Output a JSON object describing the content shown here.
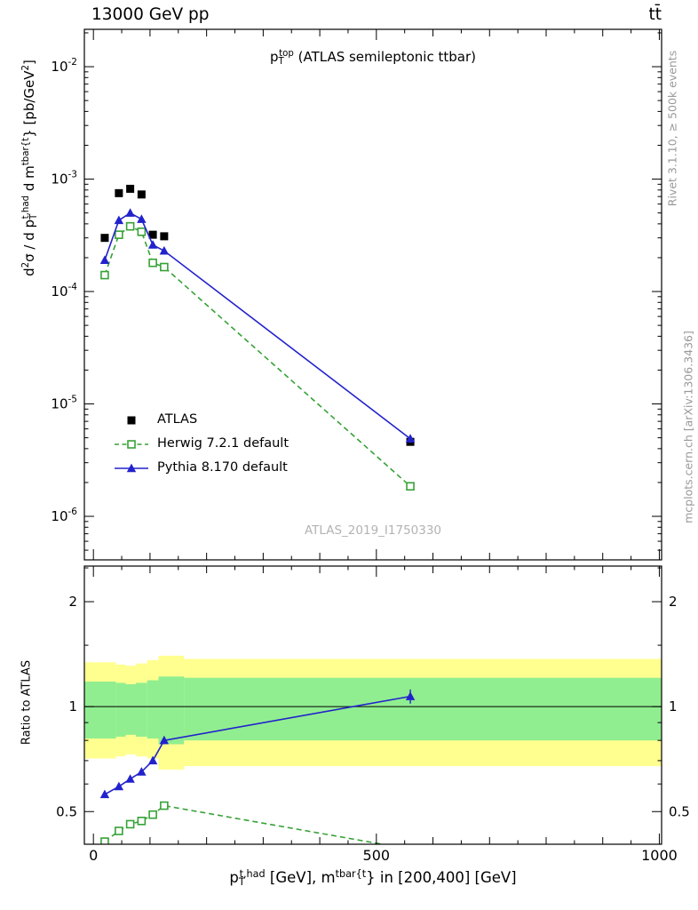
{
  "header": {
    "left": "13000 GeV pp",
    "right": "tt̄"
  },
  "watermark": "ATLAS_2019_I1750330",
  "side_notes": {
    "rivet": "Rivet 3.1.10, ≥ 500k events",
    "mcplots": "mcplots.cern.ch [arXiv:1306.3436]"
  },
  "axes": {
    "y_ratio_label": "Ratio to ATLAS"
  },
  "rich_text": {
    "panel_title": [
      {
        "t": "p",
        "s": "n"
      },
      {
        "t": "T",
        "s": "sub"
      },
      {
        "t": "top",
        "s": "sup"
      },
      {
        "t": " (ATLAS semileptonic ttbar)",
        "s": "n"
      }
    ],
    "y_main_label": [
      {
        "t": "d",
        "s": "n"
      },
      {
        "t": "2",
        "s": "sup"
      },
      {
        "t": "σ / d p",
        "s": "n"
      },
      {
        "t": "T",
        "s": "sub"
      },
      {
        "t": "t,had",
        "s": "sup"
      },
      {
        "t": " d m",
        "s": "n"
      },
      {
        "t": "tbar{t",
        "s": "sup"
      },
      {
        "t": "} [pb/GeV",
        "s": "n"
      },
      {
        "t": "2",
        "s": "sup"
      },
      {
        "t": "]",
        "s": "n"
      }
    ],
    "x_label": [
      {
        "t": "p",
        "s": "n"
      },
      {
        "t": "T",
        "s": "sub"
      },
      {
        "t": "t,had",
        "s": "sup"
      },
      {
        "t": " [GeV], m",
        "s": "n"
      },
      {
        "t": "tbar{t",
        "s": "sup"
      },
      {
        "t": "} in [200,400] [GeV]",
        "s": "n"
      }
    ]
  },
  "legend": [
    {
      "label": "ATLAS",
      "marker": "square-filled",
      "line": "none",
      "color": "#000000"
    },
    {
      "label": "Herwig 7.2.1 default",
      "marker": "square-open",
      "line": "dashed",
      "color": "#36a236"
    },
    {
      "label": "Pythia 8.170 default",
      "marker": "triangle-filled",
      "line": "solid",
      "color": "#2222cc"
    }
  ],
  "colors": {
    "atlas": "#000000",
    "herwig": "#36a236",
    "pythia": "#2222cc",
    "band_outer": "#ffff8f",
    "band_inner": "#90ee90",
    "side_text": "#999999",
    "watermark": "#b3b3b3"
  },
  "chart_data": {
    "type": "line",
    "title": "pT^top (ATLAS semileptonic ttbar)",
    "xlabel": "pT^{t,had} [GeV], m^{tbar{t}} in [200,400] [GeV]",
    "ylabel": "d2sigma / d pT^{t,had} d m^{tbar{t}} [pb/GeV^2]",
    "ratio_label": "Ratio to ATLAS",
    "x_range": [
      -16,
      1004
    ],
    "x_ticks_labeled": [
      0,
      500,
      1000
    ],
    "x_tick_minor_step": 50,
    "y_scale": "log10",
    "y_range": [
      4.1e-07,
      0.0215
    ],
    "y_tick_exponents": [
      -2,
      -3,
      -4,
      -5,
      -6
    ],
    "ratio_scale": "log2",
    "ratio_range": [
      0.403,
      2.53
    ],
    "ratio_ticks": [
      0.5,
      1,
      2
    ],
    "ratio_minor_ticks": [
      0.6,
      0.7,
      0.8,
      0.9,
      1.5,
      2.5
    ],
    "ratio_reference": 1,
    "x": [
      20,
      45,
      65,
      85,
      105,
      125,
      560
    ],
    "series": [
      {
        "name": "ATLAS",
        "color": "#000000",
        "marker": "square-filled",
        "line": "none",
        "values": [
          0.0003,
          0.00075,
          0.00082,
          0.00073,
          0.00032,
          0.00031,
          4.6e-06
        ]
      },
      {
        "name": "Herwig 7.2.1 default",
        "color": "#36a236",
        "marker": "square-open",
        "line": "dashed",
        "values": [
          0.00014,
          0.00032,
          0.00038,
          0.00034,
          0.00018,
          0.000165,
          1.85e-06
        ],
        "ratio": [
          0.41,
          0.44,
          0.46,
          0.47,
          0.49,
          0.52,
          0.39
        ]
      },
      {
        "name": "Pythia 8.170 default",
        "color": "#2222cc",
        "marker": "triangle-filled",
        "line": "solid",
        "values": [
          0.00019,
          0.00043,
          0.0005,
          0.00044,
          0.00026,
          0.00023,
          4.9e-06
        ],
        "ratio": [
          0.56,
          0.59,
          0.62,
          0.65,
          0.7,
          0.8,
          1.07
        ],
        "ratio_err": [
          0.012,
          0.012,
          0.012,
          0.015,
          0.015,
          0.02,
          0.05
        ],
        "value_err": [
          0,
          0,
          0,
          0,
          0,
          0,
          4e-07
        ]
      }
    ],
    "ratio_bands": {
      "outer_color": "#ffff8f",
      "inner_color": "#90ee90",
      "segments": [
        {
          "x0": -16,
          "x1": 40,
          "outer": [
            0.71,
            1.34
          ],
          "inner": [
            0.81,
            1.18
          ]
        },
        {
          "x0": 40,
          "x1": 57,
          "outer": [
            0.72,
            1.32
          ],
          "inner": [
            0.82,
            1.17
          ]
        },
        {
          "x0": 57,
          "x1": 75,
          "outer": [
            0.73,
            1.31
          ],
          "inner": [
            0.83,
            1.16
          ]
        },
        {
          "x0": 75,
          "x1": 95,
          "outer": [
            0.72,
            1.33
          ],
          "inner": [
            0.82,
            1.17
          ]
        },
        {
          "x0": 95,
          "x1": 115,
          "outer": [
            0.71,
            1.36
          ],
          "inner": [
            0.81,
            1.19
          ]
        },
        {
          "x0": 115,
          "x1": 160,
          "outer": [
            0.66,
            1.4
          ],
          "inner": [
            0.78,
            1.22
          ]
        },
        {
          "x0": 160,
          "x1": 1004,
          "outer": [
            0.675,
            1.37
          ],
          "inner": [
            0.8,
            1.21
          ]
        }
      ]
    }
  }
}
